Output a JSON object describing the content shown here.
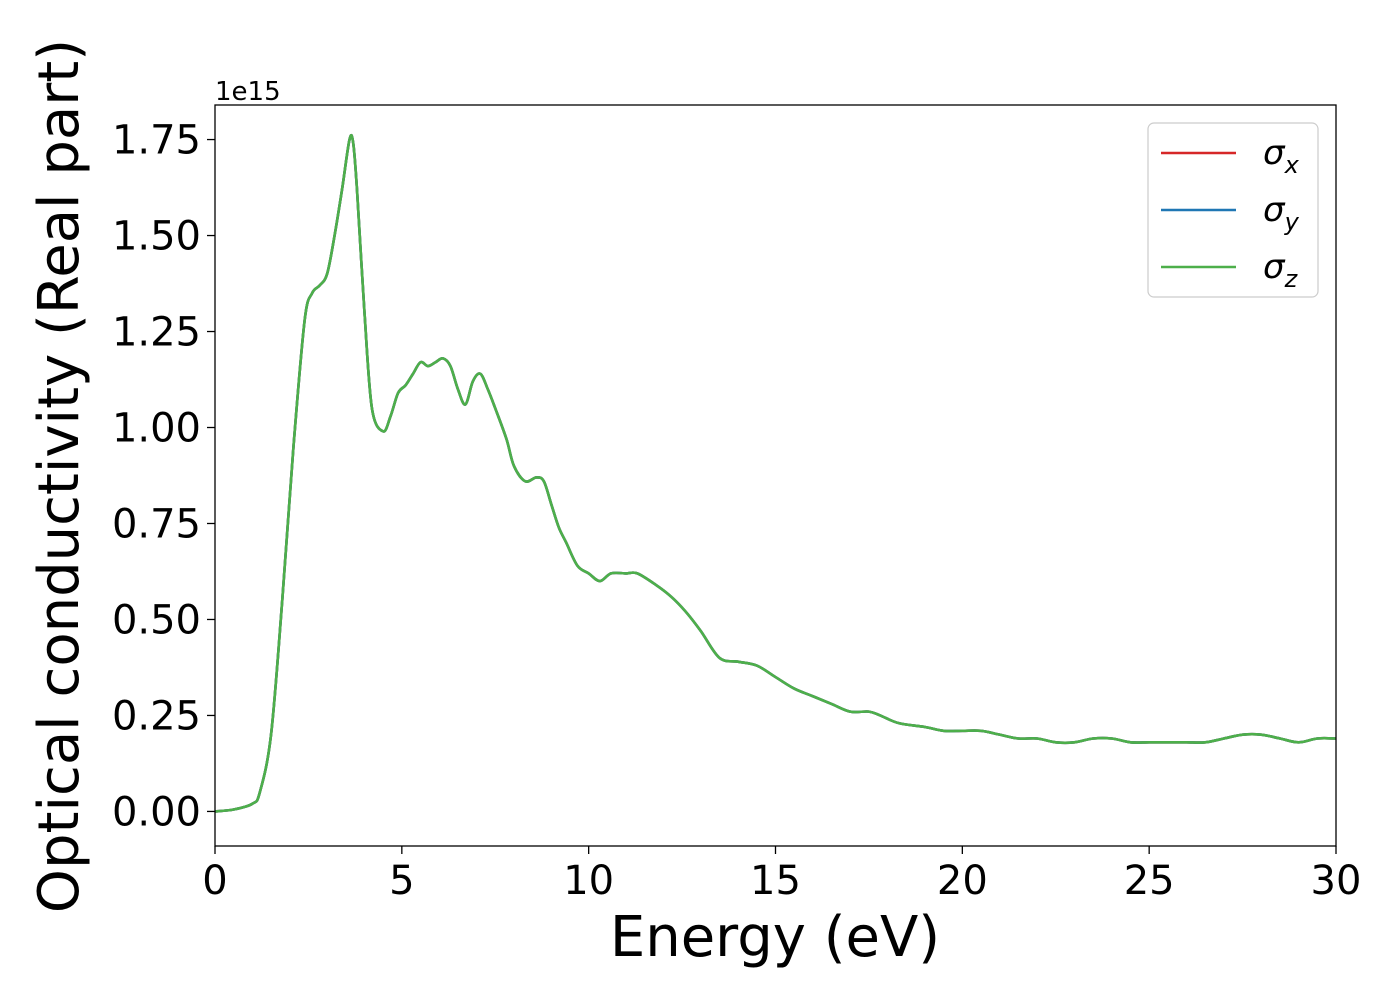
{
  "chart_data": {
    "type": "line",
    "xlabel": "Energy (eV)",
    "ylabel": "Optical conductivity (Real part)",
    "y_offset_text": "1e15",
    "y_scale_factor": 1000000000000000.0,
    "xlim": [
      0,
      30
    ],
    "ylim": [
      -0.09,
      1.84
    ],
    "x_ticks": [
      0,
      5,
      10,
      15,
      20,
      25,
      30
    ],
    "x_tick_labels": [
      "0",
      "5",
      "10",
      "15",
      "20",
      "25",
      "30"
    ],
    "y_ticks": [
      0.0,
      0.25,
      0.5,
      0.75,
      1.0,
      1.25,
      1.5,
      1.75
    ],
    "y_tick_labels": [
      "0.00",
      "0.25",
      "0.50",
      "0.75",
      "1.00",
      "1.25",
      "1.50",
      "1.75"
    ],
    "grid": false,
    "legend_position": "top-right",
    "x": [
      0,
      0.5,
      1.0,
      1.2,
      1.5,
      1.8,
      2.1,
      2.4,
      2.6,
      2.8,
      3.0,
      3.2,
      3.4,
      3.6,
      3.7,
      3.8,
      4.0,
      4.2,
      4.5,
      4.7,
      4.9,
      5.1,
      5.3,
      5.5,
      5.7,
      5.9,
      6.1,
      6.3,
      6.5,
      6.7,
      6.9,
      7.1,
      7.3,
      7.5,
      7.8,
      8.0,
      8.3,
      8.6,
      8.8,
      9.0,
      9.2,
      9.4,
      9.7,
      10.0,
      10.3,
      10.6,
      11.0,
      11.3,
      11.8,
      12.2,
      12.6,
      13.0,
      13.5,
      14.0,
      14.5,
      15.0,
      15.5,
      16.0,
      16.5,
      17.0,
      17.5,
      17.8,
      18.3,
      19.0,
      19.5,
      20.0,
      20.5,
      21.0,
      21.5,
      22.0,
      22.5,
      23.0,
      23.5,
      24.0,
      24.5,
      25.0,
      25.5,
      26.0,
      26.5,
      27.0,
      27.5,
      28.0,
      28.5,
      29.0,
      29.5,
      30.0
    ],
    "series": [
      {
        "name": "σx",
        "color": "#d62728",
        "values": [
          0.0,
          0.005,
          0.02,
          0.05,
          0.2,
          0.55,
          0.95,
          1.28,
          1.35,
          1.37,
          1.4,
          1.5,
          1.62,
          1.75,
          1.74,
          1.62,
          1.3,
          1.05,
          0.99,
          1.03,
          1.09,
          1.11,
          1.14,
          1.17,
          1.16,
          1.17,
          1.18,
          1.16,
          1.1,
          1.06,
          1.12,
          1.14,
          1.1,
          1.05,
          0.97,
          0.9,
          0.86,
          0.87,
          0.86,
          0.8,
          0.74,
          0.7,
          0.64,
          0.62,
          0.6,
          0.62,
          0.62,
          0.62,
          0.59,
          0.56,
          0.52,
          0.47,
          0.4,
          0.39,
          0.38,
          0.35,
          0.32,
          0.3,
          0.28,
          0.26,
          0.26,
          0.25,
          0.23,
          0.22,
          0.21,
          0.21,
          0.21,
          0.2,
          0.19,
          0.19,
          0.18,
          0.18,
          0.19,
          0.19,
          0.18,
          0.18,
          0.18,
          0.18,
          0.18,
          0.19,
          0.2,
          0.2,
          0.19,
          0.18,
          0.19,
          0.19
        ]
      },
      {
        "name": "σy",
        "color": "#1f77b4",
        "values": [
          0.0,
          0.005,
          0.02,
          0.05,
          0.2,
          0.55,
          0.95,
          1.28,
          1.35,
          1.37,
          1.4,
          1.5,
          1.62,
          1.75,
          1.74,
          1.62,
          1.3,
          1.05,
          0.99,
          1.03,
          1.09,
          1.11,
          1.14,
          1.17,
          1.16,
          1.17,
          1.18,
          1.16,
          1.1,
          1.06,
          1.12,
          1.14,
          1.1,
          1.05,
          0.97,
          0.9,
          0.86,
          0.87,
          0.86,
          0.8,
          0.74,
          0.7,
          0.64,
          0.62,
          0.6,
          0.62,
          0.62,
          0.62,
          0.59,
          0.56,
          0.52,
          0.47,
          0.4,
          0.39,
          0.38,
          0.35,
          0.32,
          0.3,
          0.28,
          0.26,
          0.26,
          0.25,
          0.23,
          0.22,
          0.21,
          0.21,
          0.21,
          0.2,
          0.19,
          0.19,
          0.18,
          0.18,
          0.19,
          0.19,
          0.18,
          0.18,
          0.18,
          0.18,
          0.18,
          0.19,
          0.2,
          0.2,
          0.19,
          0.18,
          0.19,
          0.19
        ]
      },
      {
        "name": "σz",
        "color": "#4daf4a",
        "values": [
          0.0,
          0.005,
          0.02,
          0.05,
          0.2,
          0.55,
          0.95,
          1.28,
          1.35,
          1.37,
          1.4,
          1.5,
          1.62,
          1.75,
          1.74,
          1.62,
          1.3,
          1.05,
          0.99,
          1.03,
          1.09,
          1.11,
          1.14,
          1.17,
          1.16,
          1.17,
          1.18,
          1.16,
          1.1,
          1.06,
          1.12,
          1.14,
          1.1,
          1.05,
          0.97,
          0.9,
          0.86,
          0.87,
          0.86,
          0.8,
          0.74,
          0.7,
          0.64,
          0.62,
          0.6,
          0.62,
          0.62,
          0.62,
          0.59,
          0.56,
          0.52,
          0.47,
          0.4,
          0.39,
          0.38,
          0.35,
          0.32,
          0.3,
          0.28,
          0.26,
          0.26,
          0.25,
          0.23,
          0.22,
          0.21,
          0.21,
          0.21,
          0.2,
          0.19,
          0.19,
          0.18,
          0.18,
          0.19,
          0.19,
          0.18,
          0.18,
          0.18,
          0.18,
          0.18,
          0.19,
          0.2,
          0.2,
          0.19,
          0.18,
          0.19,
          0.19
        ]
      }
    ],
    "legend": [
      {
        "symbol": "σ",
        "sub": "x",
        "color": "#d62728"
      },
      {
        "symbol": "σ",
        "sub": "y",
        "color": "#1f77b4"
      },
      {
        "symbol": "σ",
        "sub": "z",
        "color": "#4daf4a"
      }
    ]
  }
}
